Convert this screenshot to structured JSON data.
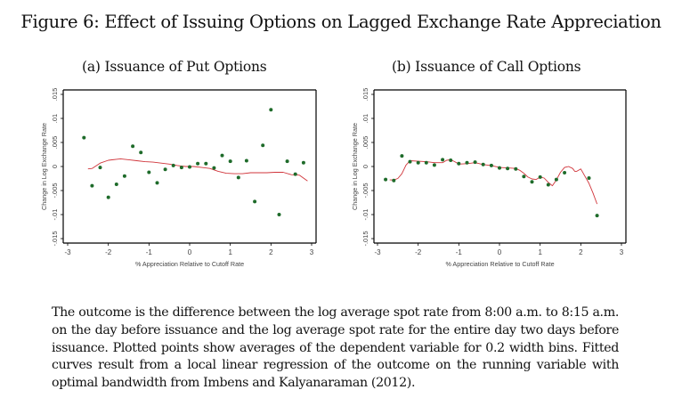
{
  "figure": {
    "title": "Figure 6: Effect of Issuing Options on Lagged Exchange Rate Appreciation",
    "caption": "The outcome is the difference between the log average spot rate from 8:00 a.m. to 8:15 a.m. on the day before issuance and the log average spot rate for the entire day two days before issuance. Plotted points show averages of the dependent variable for 0.2 width bins. Fitted curves result from a local linear regression of the outcome on the running variable with optimal bandwidth from Imbens and Kalyanaraman (2012)."
  },
  "colors": {
    "points": "#1e6b2a",
    "curve": "#d0343a",
    "axis": "#000000"
  },
  "chart_data": [
    {
      "type": "scatter",
      "title": "(a) Issuance of Put Options",
      "xlabel": "% Appreciation Relative to Cutoff Rate",
      "ylabel": "Change in Log Exchange Rate",
      "xlim": [
        -3,
        3
      ],
      "ylim": [
        -0.015,
        0.015
      ],
      "xticks": [
        "-3",
        "-2",
        "-1",
        "0",
        "1",
        "2",
        "3"
      ],
      "yticks": [
        "-.015",
        "-.01",
        "-.005",
        "0",
        ".005",
        ".01",
        ".015"
      ],
      "grid": false,
      "series": [
        {
          "name": "bin averages",
          "kind": "points",
          "x": [
            -2.6,
            -2.4,
            -2.2,
            -2.0,
            -1.8,
            -1.6,
            -1.4,
            -1.2,
            -1.0,
            -0.8,
            -0.6,
            -0.4,
            -0.2,
            0.0,
            0.2,
            0.4,
            0.6,
            0.8,
            1.0,
            1.2,
            1.4,
            1.6,
            1.8,
            2.0,
            2.2,
            2.4,
            2.6,
            2.8
          ],
          "y": [
            0.006,
            -0.004,
            -0.0002,
            -0.0064,
            -0.0037,
            -0.002,
            0.0042,
            0.0029,
            -0.0012,
            -0.0034,
            -0.0006,
            0.0002,
            -0.0002,
            -0.0001,
            0.0006,
            0.0006,
            -0.0003,
            0.0023,
            0.0011,
            -0.0023,
            0.0012,
            -0.0073,
            0.0044,
            0.0118,
            -0.01,
            0.0011,
            -0.0016,
            0.0008
          ]
        },
        {
          "name": "local linear fit",
          "kind": "line",
          "x": [
            -2.5,
            -2.4,
            -2.2,
            -2.0,
            -1.8,
            -1.7,
            -1.5,
            -1.3,
            -1.1,
            -0.9,
            -0.7,
            -0.5,
            -0.3,
            -0.1,
            0.1,
            0.3,
            0.5,
            0.7,
            0.9,
            1.1,
            1.3,
            1.5,
            1.7,
            1.9,
            2.1,
            2.3,
            2.5,
            2.7,
            2.9
          ],
          "y": [
            -0.0005,
            -0.0004,
            0.0007,
            0.0013,
            0.0015,
            0.0016,
            0.0014,
            0.0012,
            0.001,
            0.0009,
            0.0007,
            0.0005,
            0.0002,
            0.0,
            0.0,
            -0.0002,
            -0.0004,
            -0.001,
            -0.0014,
            -0.0015,
            -0.0015,
            -0.0013,
            -0.0013,
            -0.0013,
            -0.0012,
            -0.0012,
            -0.0017,
            -0.0018,
            -0.003
          ]
        }
      ]
    },
    {
      "type": "scatter",
      "title": "(b) Issuance of Call Options",
      "xlabel": "% Appreciation Relative to Cutoff Rate",
      "ylabel": "Change in Log Exchange Rate",
      "xlim": [
        -3,
        3
      ],
      "ylim": [
        -0.015,
        0.015
      ],
      "xticks": [
        "-3",
        "-2",
        "-1",
        "0",
        "1",
        "2",
        "3"
      ],
      "yticks": [
        "-.015",
        "-.01",
        "-.005",
        "0",
        ".005",
        ".01",
        ".015"
      ],
      "grid": false,
      "series": [
        {
          "name": "bin averages",
          "kind": "points",
          "x": [
            -2.8,
            -2.6,
            -2.4,
            -2.2,
            -2.0,
            -1.8,
            -1.6,
            -1.4,
            -1.2,
            -1.0,
            -0.8,
            -0.6,
            -0.4,
            -0.2,
            0.0,
            0.2,
            0.4,
            0.6,
            0.8,
            1.0,
            1.2,
            1.4,
            1.6,
            2.2,
            2.4
          ],
          "y": [
            -0.0027,
            -0.0029,
            0.0022,
            0.001,
            0.0008,
            0.0008,
            0.0003,
            0.0014,
            0.0013,
            0.0006,
            0.0008,
            0.0009,
            0.0004,
            0.0002,
            -0.0003,
            -0.0004,
            -0.0005,
            -0.0021,
            -0.0032,
            -0.0022,
            -0.0038,
            -0.0027,
            -0.0013,
            -0.0024,
            -0.0102
          ]
        },
        {
          "name": "local linear fit",
          "kind": "line",
          "x": [
            -2.7,
            -2.6,
            -2.5,
            -2.4,
            -2.3,
            -2.2,
            -2.0,
            -1.8,
            -1.6,
            -1.4,
            -1.3,
            -1.2,
            -1.1,
            -1.0,
            -0.8,
            -0.6,
            -0.4,
            -0.2,
            0.0,
            0.2,
            0.4,
            0.5,
            0.6,
            0.7,
            0.8,
            0.9,
            1.0,
            1.1,
            1.2,
            1.3,
            1.4,
            1.5,
            1.6,
            1.7,
            1.8,
            1.85,
            1.9,
            2.0,
            2.1,
            2.2,
            2.3,
            2.4
          ],
          "y": [
            -0.0028,
            -0.0028,
            -0.0025,
            -0.0015,
            0.0003,
            0.0012,
            0.0011,
            0.001,
            0.0008,
            0.0008,
            0.0013,
            0.0014,
            0.001,
            0.0005,
            0.0006,
            0.0008,
            0.0004,
            0.0002,
            -0.0002,
            -0.0003,
            -0.0004,
            -0.0008,
            -0.0014,
            -0.0022,
            -0.0026,
            -0.0027,
            -0.0022,
            -0.0024,
            -0.0033,
            -0.004,
            -0.0028,
            -0.0012,
            -0.0002,
            0.0,
            -0.0004,
            -0.001,
            -0.001,
            -0.0005,
            -0.002,
            -0.0035,
            -0.0055,
            -0.0078
          ]
        }
      ]
    }
  ]
}
